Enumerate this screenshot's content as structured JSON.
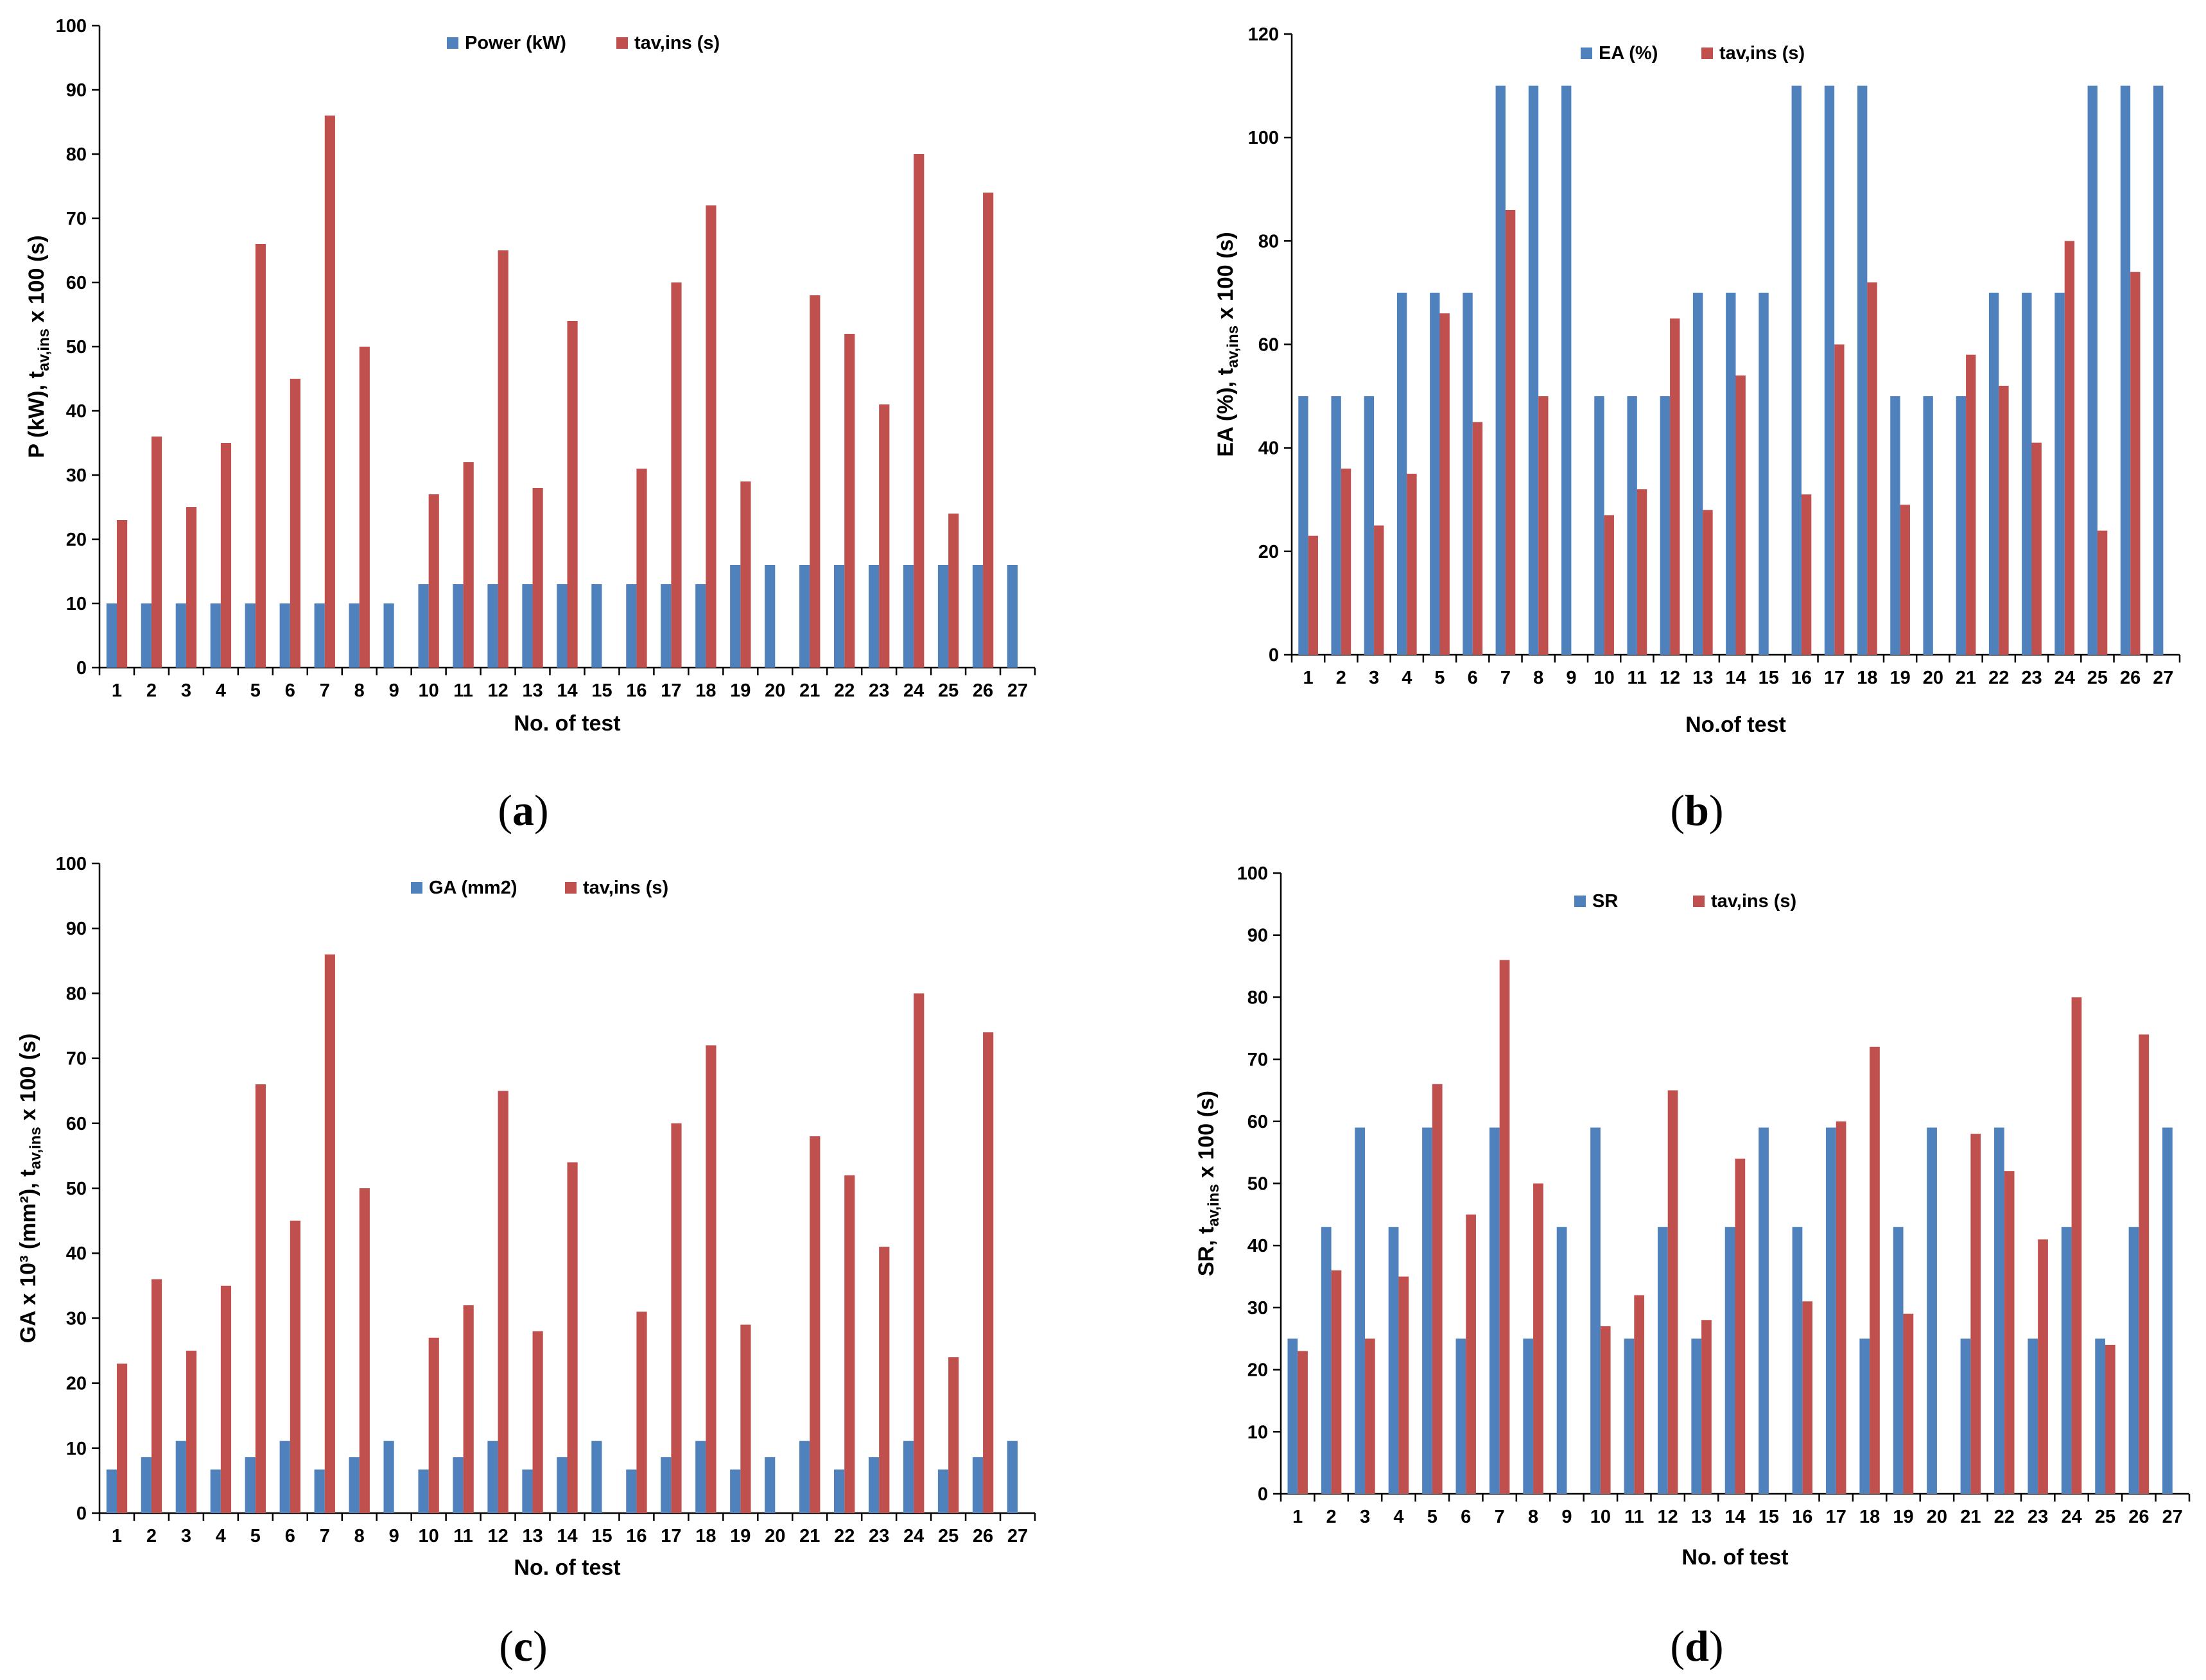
{
  "colors": {
    "blue": "#4f81bd",
    "red": "#c0504d",
    "axis": "#000000"
  },
  "chart_data": [
    {
      "id": "a",
      "type": "bar",
      "caption": "a",
      "categories": [
        "1",
        "2",
        "3",
        "4",
        "5",
        "6",
        "7",
        "8",
        "9",
        "10",
        "11",
        "12",
        "13",
        "14",
        "15",
        "16",
        "17",
        "18",
        "19",
        "20",
        "21",
        "22",
        "23",
        "24",
        "25",
        "26",
        "27"
      ],
      "xlabel": "No. of test",
      "ylabel": "P (kW), t",
      "ylabel_sub": "av,ins",
      "ylabel_tail": " x 100 (s)",
      "ylim": [
        0,
        100
      ],
      "yticks": [
        0,
        10,
        20,
        30,
        40,
        50,
        60,
        70,
        80,
        90,
        100
      ],
      "legend_position": "top-center",
      "series": [
        {
          "name": "Power (kW)",
          "color": "#4f81bd",
          "values": [
            10,
            10,
            10,
            10,
            10,
            10,
            10,
            10,
            10,
            13,
            13,
            13,
            13,
            13,
            13,
            13,
            13,
            13,
            16,
            16,
            16,
            16,
            16,
            16,
            16,
            16,
            16
          ]
        },
        {
          "name": "tav,ins (s)",
          "color": "#c0504d",
          "values": [
            23,
            36,
            25,
            35,
            66,
            45,
            86,
            50,
            null,
            27,
            32,
            65,
            28,
            54,
            null,
            31,
            60,
            72,
            29,
            null,
            58,
            52,
            41,
            80,
            24,
            74,
            null
          ]
        }
      ]
    },
    {
      "id": "b",
      "type": "bar",
      "caption": "b",
      "categories": [
        "1",
        "2",
        "3",
        "4",
        "5",
        "6",
        "7",
        "8",
        "9",
        "10",
        "11",
        "12",
        "13",
        "14",
        "15",
        "16",
        "17",
        "18",
        "19",
        "20",
        "21",
        "22",
        "23",
        "24",
        "25",
        "26",
        "27"
      ],
      "xlabel": "No.of test",
      "ylabel": "EA (%), t",
      "ylabel_sub": "av,ins",
      "ylabel_tail": " x 100 (s)",
      "ylim": [
        0,
        120
      ],
      "yticks": [
        0,
        20,
        40,
        60,
        80,
        100,
        120
      ],
      "legend_position": "top-center",
      "series": [
        {
          "name": "EA (%)",
          "color": "#4f81bd",
          "values": [
            50,
            50,
            50,
            70,
            70,
            70,
            110,
            110,
            110,
            50,
            50,
            50,
            70,
            70,
            70,
            110,
            110,
            110,
            50,
            50,
            50,
            70,
            70,
            70,
            110,
            110,
            110
          ]
        },
        {
          "name": "tav,ins (s)",
          "color": "#c0504d",
          "values": [
            23,
            36,
            25,
            35,
            66,
            45,
            86,
            50,
            null,
            27,
            32,
            65,
            28,
            54,
            null,
            31,
            60,
            72,
            29,
            null,
            58,
            52,
            41,
            80,
            24,
            74,
            null
          ]
        }
      ]
    },
    {
      "id": "c",
      "type": "bar",
      "caption": "c",
      "categories": [
        "1",
        "2",
        "3",
        "4",
        "5",
        "6",
        "7",
        "8",
        "9",
        "10",
        "11",
        "12",
        "13",
        "14",
        "15",
        "16",
        "17",
        "18",
        "19",
        "20",
        "21",
        "22",
        "23",
        "24",
        "25",
        "26",
        "27"
      ],
      "xlabel": "No. of test",
      "ylabel": "GA x 10³ (mm²), t",
      "ylabel_sub": "av,ins",
      "ylabel_tail": " x 100 (s)",
      "ylim": [
        0,
        100
      ],
      "yticks": [
        0,
        10,
        20,
        30,
        40,
        50,
        60,
        70,
        80,
        90,
        100
      ],
      "legend_position": "top-center",
      "series": [
        {
          "name": "GA (mm2)",
          "color": "#4f81bd",
          "values": [
            6.7,
            8.6,
            11.1,
            6.7,
            8.6,
            11.1,
            6.7,
            8.6,
            11.1,
            6.7,
            8.6,
            11.1,
            6.7,
            8.6,
            11.1,
            6.7,
            8.6,
            11.1,
            6.7,
            8.6,
            11.1,
            6.7,
            8.6,
            11.1,
            6.7,
            8.6,
            11.1
          ]
        },
        {
          "name": "tav,ins (s)",
          "color": "#c0504d",
          "values": [
            23,
            36,
            25,
            35,
            66,
            45,
            86,
            50,
            null,
            27,
            32,
            65,
            28,
            54,
            null,
            31,
            60,
            72,
            29,
            null,
            58,
            52,
            41,
            80,
            24,
            74,
            null
          ]
        }
      ]
    },
    {
      "id": "d",
      "type": "bar",
      "caption": "d",
      "categories": [
        "1",
        "2",
        "3",
        "4",
        "5",
        "6",
        "7",
        "8",
        "9",
        "10",
        "11",
        "12",
        "13",
        "14",
        "15",
        "16",
        "17",
        "18",
        "19",
        "20",
        "21",
        "22",
        "23",
        "24",
        "25",
        "26",
        "27"
      ],
      "xlabel": "No. of test",
      "ylabel": "SR, t",
      "ylabel_sub": "av,ins",
      "ylabel_tail": " x 100 (s)",
      "ylim": [
        0,
        100
      ],
      "yticks": [
        0,
        10,
        20,
        30,
        40,
        50,
        60,
        70,
        80,
        90,
        100
      ],
      "legend_position": "top-center",
      "series": [
        {
          "name": "SR",
          "color": "#4f81bd",
          "values": [
            25,
            43,
            59,
            43,
            59,
            25,
            59,
            25,
            43,
            59,
            25,
            43,
            25,
            43,
            59,
            43,
            59,
            25,
            43,
            59,
            25,
            59,
            25,
            43,
            25,
            43,
            59
          ]
        },
        {
          "name": "tav,ins (s)",
          "color": "#c0504d",
          "values": [
            23,
            36,
            25,
            35,
            66,
            45,
            86,
            50,
            null,
            27,
            32,
            65,
            28,
            54,
            null,
            31,
            60,
            72,
            29,
            null,
            58,
            52,
            41,
            80,
            24,
            74,
            null
          ]
        }
      ]
    }
  ]
}
